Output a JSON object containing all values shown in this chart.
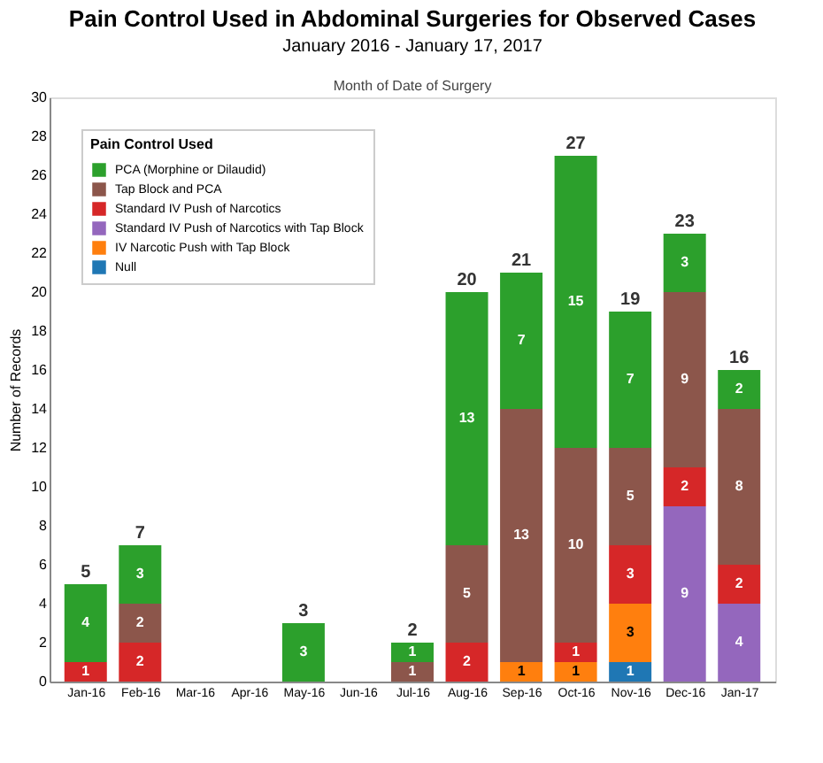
{
  "chart_data": {
    "type": "bar",
    "stacked": true,
    "title": "Pain Control Used in Abdominal Surgeries for Observed Cases",
    "subtitle": "January 2016 - January 17, 2017",
    "xlabel": "Month of Date of Surgery",
    "ylabel": "Number of Records",
    "legend_title": "Pain Control Used",
    "legend": "top left",
    "grid": false,
    "data_labels": true,
    "categories": [
      "Jan-16",
      "Feb-16",
      "Mar-16",
      "Apr-16",
      "May-16",
      "Jun-16",
      "Jul-16",
      "Aug-16",
      "Sep-16",
      "Oct-16",
      "Nov-16",
      "Dec-16",
      "Jan-17"
    ],
    "ylim": [
      0,
      30
    ],
    "yticks": [
      0,
      2,
      4,
      6,
      8,
      10,
      12,
      14,
      16,
      18,
      20,
      22,
      24,
      26,
      28,
      30
    ],
    "series": [
      {
        "name": "Null",
        "color": "#1f77b4",
        "values": [
          null,
          null,
          null,
          null,
          null,
          null,
          null,
          null,
          null,
          null,
          1,
          null,
          null
        ]
      },
      {
        "name": "IV Narcotic Push with Tap Block",
        "color": "#ff7f0e",
        "values": [
          null,
          null,
          null,
          null,
          null,
          null,
          null,
          null,
          1,
          1,
          3,
          null,
          null
        ]
      },
      {
        "name": "Standard IV Push of Narcotics with Tap Block",
        "color": "#9467bd",
        "values": [
          null,
          null,
          null,
          null,
          null,
          null,
          null,
          null,
          null,
          null,
          null,
          9,
          4
        ]
      },
      {
        "name": "Standard IV Push of Narcotics",
        "color": "#d62728",
        "values": [
          1,
          2,
          null,
          null,
          null,
          null,
          null,
          2,
          null,
          1,
          3,
          2,
          2
        ]
      },
      {
        "name": "Tap Block and PCA",
        "color": "#8c564b",
        "values": [
          null,
          2,
          null,
          null,
          null,
          null,
          1,
          5,
          13,
          10,
          5,
          9,
          8
        ]
      },
      {
        "name": "PCA (Morphine or Dilaudid)",
        "color": "#2ca02c",
        "values": [
          4,
          3,
          null,
          null,
          3,
          null,
          1,
          13,
          7,
          15,
          7,
          3,
          2
        ]
      }
    ],
    "totals": [
      "5",
      "7",
      null,
      null,
      "3",
      null,
      "2",
      "20",
      "21",
      "27",
      "19",
      "23",
      "16"
    ]
  }
}
